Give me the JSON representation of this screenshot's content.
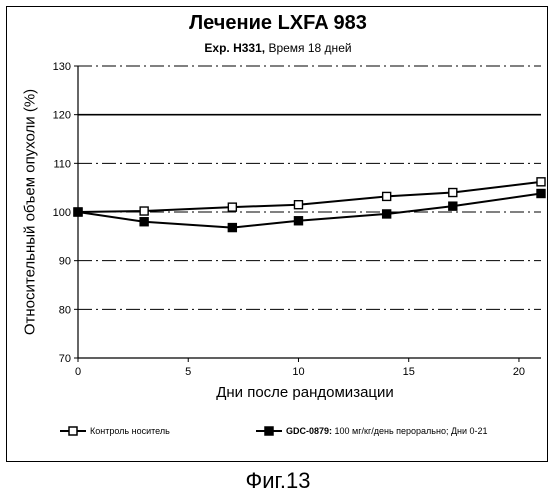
{
  "chart_data": {
    "type": "line",
    "title": "Лечение LXFA 983",
    "subtitle_bold": "Exp. H331,",
    "subtitle_rest": " Время 18 дней",
    "xlabel": "Дни после рандомизации",
    "ylabel": "Относительный объем опухоли (%)",
    "xlim": [
      0,
      21
    ],
    "ylim": [
      70,
      130
    ],
    "xticks": [
      0,
      5,
      10,
      15,
      20
    ],
    "yticks": [
      70,
      80,
      90,
      100,
      110,
      120,
      130
    ],
    "grid": "horizontal dashed",
    "legend_position": "bottom",
    "series": [
      {
        "name": "Контроль носитель",
        "marker": "open-square",
        "x": [
          0,
          3,
          7,
          10,
          14,
          17,
          21
        ],
        "y": [
          100,
          100.2,
          101,
          101.5,
          103.2,
          104,
          106.2
        ]
      },
      {
        "name_bold": "GDC-0879:",
        "name_rest": " 100 мг/кг/день перорально; Дни 0-21",
        "marker": "filled-square",
        "x": [
          0,
          3,
          7,
          10,
          14,
          17,
          21
        ],
        "y": [
          100,
          98,
          96.8,
          98.2,
          99.6,
          101.2,
          103.8
        ]
      }
    ]
  },
  "caption": "Фиг.13"
}
